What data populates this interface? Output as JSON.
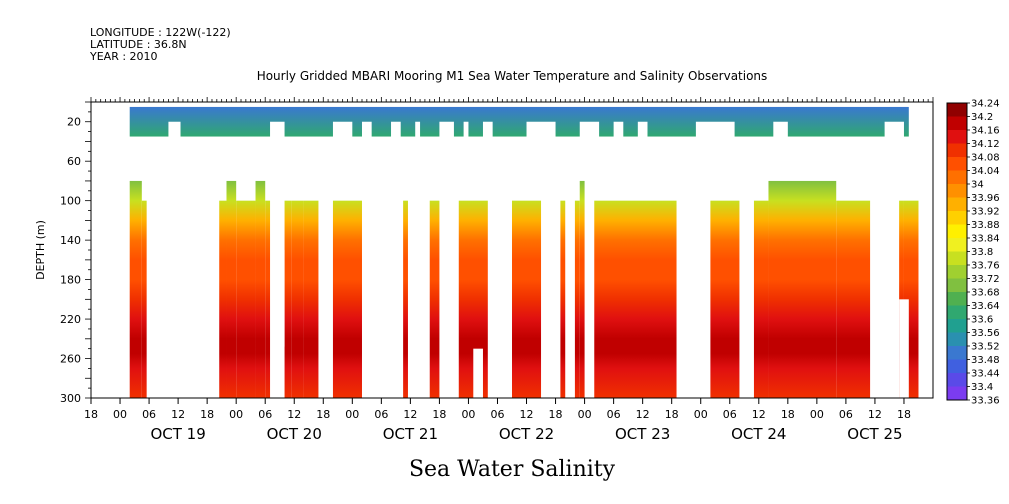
{
  "header": {
    "longitude": "LONGITUDE : 122W(-122)",
    "latitude": "LATITUDE : 36.8N",
    "year": "YEAR : 2010"
  },
  "chart_data": {
    "type": "heatmap",
    "title": "Hourly Gridded MBARI Mooring M1 Sea Water Temperature and Salinity Observations",
    "bottom_title": "Sea Water Salinity",
    "ylabel": "DEPTH (m)",
    "xlabel": "",
    "x_unit": "hours since OCT 19 00",
    "xlim": [
      -6,
      168
    ],
    "ylim": [
      300,
      0
    ],
    "y_ticks": [
      20,
      60,
      100,
      140,
      180,
      220,
      260,
      300
    ],
    "x_ticks": [
      -6,
      0,
      6,
      12,
      18,
      24,
      30,
      36,
      42,
      48,
      54,
      60,
      66,
      72,
      78,
      84,
      90,
      96,
      102,
      108,
      114,
      120,
      126,
      132,
      138,
      144,
      150,
      156,
      162
    ],
    "x_tick_labels": [
      "00",
      "06",
      "12",
      "18"
    ],
    "day_labels": [
      {
        "hour": 12,
        "text": "OCT 19"
      },
      {
        "hour": 36,
        "text": "OCT 20"
      },
      {
        "hour": 60,
        "text": "OCT 21"
      },
      {
        "hour": 84,
        "text": "OCT 22"
      },
      {
        "hour": 108,
        "text": "OCT 23"
      },
      {
        "hour": 132,
        "text": "OCT 24"
      },
      {
        "hour": 156,
        "text": "OCT 25"
      }
    ],
    "colorbar": {
      "min": 33.36,
      "max": 34.24,
      "step": 0.04,
      "labels": [
        "34.24",
        "34.2",
        "34.16",
        "34.12",
        "34.08",
        "34.04",
        "34",
        "33.96",
        "33.92",
        "33.88",
        "33.84",
        "33.8",
        "33.76",
        "33.72",
        "33.68",
        "33.64",
        "33.6",
        "33.56",
        "33.52",
        "33.48",
        "33.44",
        "33.4",
        "33.36"
      ]
    },
    "surface_layer": {
      "depth_range": [
        5,
        35
      ],
      "segments": [
        [
          2,
          163
        ]
      ],
      "gaps_lower": [
        [
          10,
          12.5
        ],
        [
          31,
          34
        ],
        [
          44,
          48
        ],
        [
          50,
          52
        ],
        [
          56,
          58
        ],
        [
          61,
          62
        ],
        [
          66,
          69
        ],
        [
          71,
          72
        ],
        [
          75,
          77
        ],
        [
          84,
          90
        ],
        [
          95,
          99
        ],
        [
          102,
          104
        ],
        [
          107,
          109
        ],
        [
          119,
          127
        ],
        [
          135,
          138
        ],
        [
          158,
          162
        ]
      ]
    },
    "deep_blocks": [
      {
        "x": [
          2,
          4.5
        ],
        "top": 80,
        "bottom": 300
      },
      {
        "x": [
          4.5,
          5.5
        ],
        "top": 100,
        "bottom": 300
      },
      {
        "x": [
          20.5,
          22
        ],
        "top": 100,
        "bottom": 300
      },
      {
        "x": [
          22,
          24
        ],
        "top": 80,
        "bottom": 300
      },
      {
        "x": [
          24,
          28
        ],
        "top": 100,
        "bottom": 300
      },
      {
        "x": [
          28,
          30
        ],
        "top": 80,
        "bottom": 300
      },
      {
        "x": [
          30,
          31
        ],
        "top": 100,
        "bottom": 300
      },
      {
        "x": [
          34,
          35.5
        ],
        "top": 100,
        "bottom": 300
      },
      {
        "x": [
          35.5,
          38
        ],
        "top": 100,
        "bottom": 300
      },
      {
        "x": [
          38,
          41
        ],
        "top": 100,
        "bottom": 300
      },
      {
        "x": [
          44,
          50
        ],
        "top": 100,
        "bottom": 300
      },
      {
        "x": [
          58.5,
          59.5
        ],
        "top": 100,
        "bottom": 300
      },
      {
        "x": [
          64,
          66
        ],
        "top": 100,
        "bottom": 300
      },
      {
        "x": [
          70,
          76
        ],
        "top": 100,
        "bottom": 300
      },
      {
        "x": [
          81,
          87
        ],
        "top": 100,
        "bottom": 300
      },
      {
        "x": [
          91,
          92
        ],
        "top": 100,
        "bottom": 300
      },
      {
        "x": [
          94,
          95
        ],
        "top": 100,
        "bottom": 300
      },
      {
        "x": [
          95,
          96
        ],
        "top": 80,
        "bottom": 300
      },
      {
        "x": [
          98,
          115
        ],
        "top": 100,
        "bottom": 300
      },
      {
        "x": [
          122,
          128
        ],
        "top": 100,
        "bottom": 300
      },
      {
        "x": [
          131,
          134
        ],
        "top": 100,
        "bottom": 300
      },
      {
        "x": [
          134,
          148
        ],
        "top": 80,
        "bottom": 300
      },
      {
        "x": [
          148,
          155
        ],
        "top": 100,
        "bottom": 300
      },
      {
        "x": [
          161,
          162
        ],
        "top": 100,
        "bottom": 300
      },
      {
        "x": [
          162,
          165
        ],
        "top": 100,
        "bottom": 300
      }
    ],
    "deep_gaps": [
      {
        "x": [
          32,
          34
        ],
        "top": 150,
        "bottom": 248
      },
      {
        "x": [
          73,
          75
        ],
        "top": 250,
        "bottom": 300
      },
      {
        "x": [
          161,
          163
        ],
        "top": 200,
        "bottom": 300
      }
    ],
    "profile": [
      {
        "depth": 80,
        "value": 33.7
      },
      {
        "depth": 100,
        "value": 33.82
      },
      {
        "depth": 120,
        "value": 33.95
      },
      {
        "depth": 140,
        "value": 34.04
      },
      {
        "depth": 160,
        "value": 34.08
      },
      {
        "depth": 180,
        "value": 34.1
      },
      {
        "depth": 200,
        "value": 34.12
      },
      {
        "depth": 220,
        "value": 34.15
      },
      {
        "depth": 240,
        "value": 34.19
      },
      {
        "depth": 255,
        "value": 34.22
      },
      {
        "depth": 270,
        "value": 34.18
      },
      {
        "depth": 300,
        "value": 34.14
      }
    ],
    "surface_values": {
      "top": 33.5,
      "bottom": 33.64
    }
  },
  "colors": {
    "scale": [
      "#a020f0",
      "#7b3cf0",
      "#5a4ae8",
      "#4060e0",
      "#3a78d0",
      "#2a90b0",
      "#20a090",
      "#30a870",
      "#50b050",
      "#80c040",
      "#a0d030",
      "#c8e020",
      "#f0f020",
      "#fff000",
      "#ffd000",
      "#ffb000",
      "#ff9000",
      "#ff7000",
      "#ff5000",
      "#f03000",
      "#e01010",
      "#c00000",
      "#900000"
    ]
  }
}
